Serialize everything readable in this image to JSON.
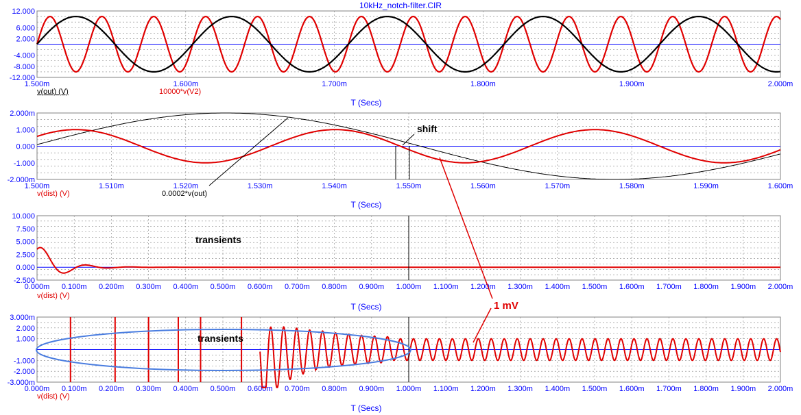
{
  "window_title": "10kHz_notch-filter.CIR",
  "colors": {
    "axis": "#0000ff",
    "red": "#e00000",
    "black": "#000000",
    "grid": "#808080",
    "ellipse": "#4a7de0",
    "legend_black": "#000000",
    "legend_red": "#e00000"
  },
  "chart_data": [
    {
      "type": "line",
      "xlabel": "T (Secs)",
      "xlim": [
        1.5,
        2.0
      ],
      "ylim": [
        -12,
        12
      ],
      "y_ticks": [
        -12,
        -8,
        -4,
        2,
        6,
        12
      ],
      "y_tick_labels": [
        "-12.000",
        "-8.000",
        "-4.000",
        "2.000",
        "6.000",
        "12.000"
      ],
      "x_ticks": [
        1.5,
        1.6,
        1.7,
        1.8,
        1.9,
        2.0
      ],
      "x_tick_labels": [
        "1.500m",
        "1.600m",
        "1.700m",
        "1.800m",
        "1.900m",
        "2.000m"
      ],
      "grid": true,
      "series": [
        {
          "name": "v(out) (V)",
          "color": "#000000",
          "amplitude": 10,
          "frequency_per_ms": 9.55,
          "phase_ms": 1.5
        },
        {
          "name": "10000*v(V2)",
          "color": "#e00000",
          "amplitude": 10,
          "frequency_per_ms": 28.65,
          "phase_ms": 1.5
        }
      ]
    },
    {
      "type": "line",
      "xlabel": "T (Secs)",
      "xlim": [
        1.5,
        1.6
      ],
      "ylim": [
        -2,
        2
      ],
      "y_ticks": [
        -2,
        -1,
        0,
        1,
        2
      ],
      "y_tick_labels": [
        "-2.000m",
        "-1.000",
        "0.000",
        "1.000",
        "2.000m"
      ],
      "x_ticks": [
        1.5,
        1.51,
        1.52,
        1.53,
        1.54,
        1.55,
        1.56,
        1.57,
        1.58,
        1.59,
        1.6
      ],
      "x_tick_labels": [
        "1.500m",
        "1.510m",
        "1.520m",
        "1.530m",
        "1.540m",
        "1.550m",
        "1.560m",
        "1.570m",
        "1.580m",
        "1.590m",
        "1.600m"
      ],
      "grid": true,
      "series": [
        {
          "name": "v(dist) (V)",
          "color": "#e00000",
          "amplitude": 1,
          "frequency_per_ms": 28.65,
          "phase_ms": 1.4965
        },
        {
          "name": "0.0002*v(out)",
          "color": "#000000",
          "amplitude": 2,
          "frequency_per_ms": 9.55,
          "phase_ms": 1.4992
        }
      ],
      "annotations": [
        "shift"
      ]
    },
    {
      "type": "line",
      "xlabel": "T (Secs)",
      "xlim": [
        0,
        2.0
      ],
      "ylim": [
        -2.5,
        10
      ],
      "y_ticks": [
        -2.5,
        0,
        2.5,
        5,
        7.5,
        10
      ],
      "y_tick_labels": [
        "-2.500",
        "0.000",
        "2.500",
        "5.000",
        "7.500",
        "10.000"
      ],
      "x_ticks": [
        0,
        0.1,
        0.2,
        0.3,
        0.4,
        0.5,
        0.6,
        0.7,
        0.8,
        0.9,
        1.0,
        1.1,
        1.2,
        1.3,
        1.4,
        1.5,
        1.6,
        1.7,
        1.8,
        1.9,
        2.0
      ],
      "x_tick_labels": [
        "0.000m",
        "0.100m",
        "0.200m",
        "0.300m",
        "0.400m",
        "0.500m",
        "0.600m",
        "0.700m",
        "0.800m",
        "0.900m",
        "1.000m",
        "1.100m",
        "1.200m",
        "1.300m",
        "1.400m",
        "1.500m",
        "1.600m",
        "1.700m",
        "1.800m",
        "1.900m",
        "2.000m"
      ],
      "grid": true,
      "series": [
        {
          "name": "v(dist) (V)",
          "color": "#e00000"
        }
      ],
      "annotations": [
        "transients"
      ]
    },
    {
      "type": "line",
      "xlabel": "T (Secs)",
      "xlim": [
        0,
        2.0
      ],
      "ylim": [
        -3,
        3
      ],
      "y_ticks": [
        -3,
        -2,
        -1,
        1,
        2,
        3
      ],
      "y_tick_labels": [
        "-3.000m",
        "-2.000",
        "-1.000",
        "1.000",
        "2.000",
        "3.000m"
      ],
      "x_ticks": [
        0,
        0.1,
        0.2,
        0.3,
        0.4,
        0.5,
        0.6,
        0.7,
        0.8,
        0.9,
        1.0,
        1.1,
        1.2,
        1.3,
        1.4,
        1.5,
        1.6,
        1.7,
        1.8,
        1.9,
        2.0
      ],
      "x_tick_labels": [
        "0.000m",
        "0.100m",
        "0.200m",
        "0.300m",
        "0.400m",
        "0.500m",
        "0.600m",
        "0.700m",
        "0.800m",
        "0.900m",
        "1.000m",
        "1.100m",
        "1.200m",
        "1.300m",
        "1.400m",
        "1.500m",
        "1.600m",
        "1.700m",
        "1.800m",
        "1.900m",
        "2.000m"
      ],
      "grid": true,
      "series": [
        {
          "name": "v(dist) (V)",
          "color": "#e00000",
          "amplitude": 1,
          "frequency_per_ms": 28.65
        }
      ],
      "annotations": [
        "transients"
      ]
    }
  ],
  "annotations": {
    "one_mv": "1 mV"
  }
}
